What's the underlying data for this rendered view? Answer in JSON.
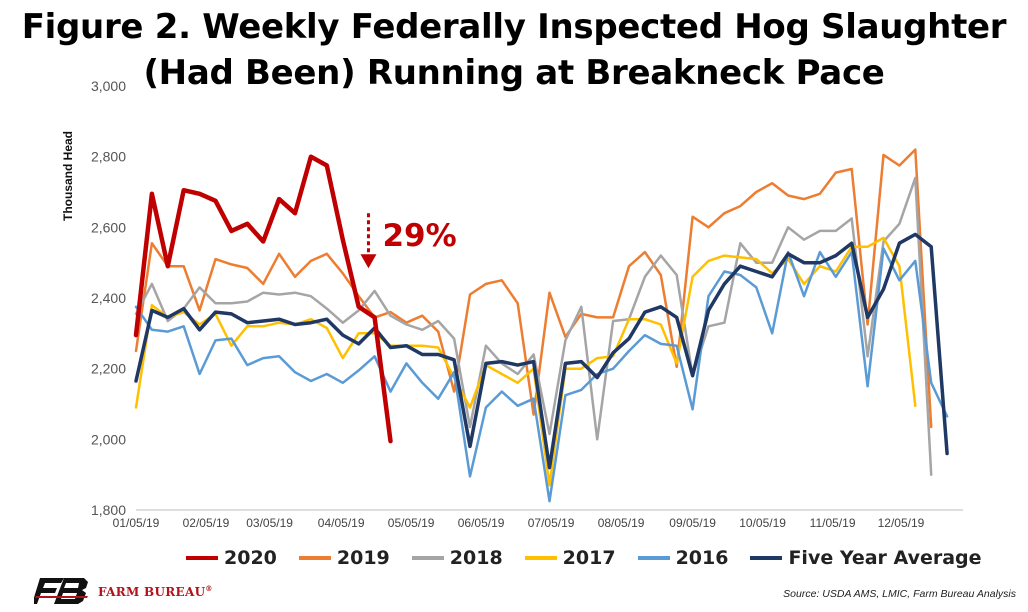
{
  "title_lines": [
    "Figure 2. Weekly Federally Inspected Hog Slaughter",
    "(Had Been) Running at Breakneck Pace"
  ],
  "source": "Source: USDA AMS, LMIC, Farm Bureau Analysis",
  "logo": {
    "text": "FARM BUREAU",
    "mark": "®",
    "icon": "farm-bureau-fb-logo",
    "color": "#b3121b"
  },
  "chart_data": {
    "type": "line",
    "title": "Figure 2. Weekly Federally Inspected Hog Slaughter (Had Been) Running at Breakneck Pace",
    "ylabel": "Thousand Head",
    "xlabel": "",
    "ylim": [
      1800,
      3000
    ],
    "yticks": [
      1800,
      2000,
      2200,
      2400,
      2600,
      2800,
      3000
    ],
    "ytick_labels": [
      "1,800",
      "2,000",
      "2,200",
      "2,400",
      "2,600",
      "2,800",
      "3,000"
    ],
    "xtick_labels": [
      "01/05/19",
      "02/05/19",
      "03/05/19",
      "04/05/19",
      "05/05/19",
      "06/05/19",
      "07/05/19",
      "08/05/19",
      "09/05/19",
      "10/05/19",
      "11/05/19",
      "12/05/19"
    ],
    "xtick_weeks": [
      0,
      4.4,
      8.4,
      12.9,
      17.3,
      21.7,
      26.1,
      30.5,
      35.0,
      39.4,
      43.8,
      48.1
    ],
    "weeks": 53,
    "grid": false,
    "legend_position": "bottom",
    "annotation": {
      "text": "29%",
      "week": 16,
      "y_from": 2640,
      "y_to": 2490,
      "color": "#c00000"
    },
    "series": [
      {
        "name": "2020",
        "color": "#c00000",
        "width": 4.5,
        "values": [
          2295,
          2695,
          2490,
          2705,
          2695,
          2675,
          2590,
          2610,
          2560,
          2680,
          2640,
          2800,
          2775,
          2565,
          2375,
          2345,
          1995
        ]
      },
      {
        "name": "2019",
        "color": "#ed7d31",
        "width": 2.5,
        "values": [
          2250,
          2555,
          2490,
          2490,
          2365,
          2510,
          2495,
          2485,
          2440,
          2525,
          2460,
          2505,
          2525,
          2470,
          2405,
          2345,
          2360,
          2330,
          2350,
          2305,
          2135,
          2410,
          2440,
          2450,
          2385,
          2070,
          2415,
          2290,
          2355,
          2345,
          2345,
          2490,
          2530,
          2465,
          2205,
          2630,
          2600,
          2640,
          2660,
          2700,
          2725,
          2690,
          2680,
          2695,
          2755,
          2765,
          2325,
          2805,
          2775,
          2820,
          2035
        ]
      },
      {
        "name": "2018",
        "color": "#a5a5a5",
        "width": 2.5,
        "values": [
          2355,
          2440,
          2335,
          2370,
          2430,
          2385,
          2385,
          2390,
          2415,
          2410,
          2415,
          2405,
          2370,
          2330,
          2365,
          2420,
          2350,
          2325,
          2310,
          2335,
          2285,
          2035,
          2265,
          2215,
          2185,
          2240,
          2015,
          2280,
          2375,
          2000,
          2335,
          2340,
          2460,
          2520,
          2465,
          2180,
          2320,
          2330,
          2555,
          2500,
          2500,
          2600,
          2565,
          2590,
          2590,
          2625,
          2235,
          2560,
          2610,
          2740,
          1900
        ]
      },
      {
        "name": "2017",
        "color": "#ffc000",
        "width": 2.5,
        "values": [
          2090,
          2380,
          2345,
          2360,
          2325,
          2355,
          2265,
          2320,
          2320,
          2330,
          2325,
          2340,
          2315,
          2230,
          2300,
          2300,
          2265,
          2265,
          2265,
          2260,
          2175,
          2090,
          2210,
          2185,
          2160,
          2200,
          1870,
          2200,
          2200,
          2230,
          2235,
          2340,
          2340,
          2325,
          2215,
          2460,
          2505,
          2520,
          2515,
          2510,
          2470,
          2510,
          2440,
          2490,
          2475,
          2545,
          2545,
          2570,
          2490,
          2095
        ]
      },
      {
        "name": "2016",
        "color": "#5b9bd5",
        "width": 2.5,
        "values": [
          2375,
          2310,
          2305,
          2320,
          2185,
          2280,
          2285,
          2210,
          2230,
          2235,
          2190,
          2165,
          2185,
          2160,
          2195,
          2235,
          2135,
          2215,
          2160,
          2115,
          2190,
          1895,
          2090,
          2135,
          2095,
          2115,
          1825,
          2125,
          2140,
          2185,
          2200,
          2250,
          2295,
          2270,
          2265,
          2085,
          2405,
          2475,
          2465,
          2430,
          2300,
          2530,
          2405,
          2530,
          2460,
          2530,
          2150,
          2540,
          2450,
          2505,
          2160,
          2065
        ]
      },
      {
        "name": "Five Year Average",
        "color": "#1f3864",
        "width": 3.5,
        "values": [
          2165,
          2365,
          2345,
          2370,
          2310,
          2360,
          2355,
          2330,
          2335,
          2340,
          2325,
          2330,
          2340,
          2295,
          2270,
          2315,
          2260,
          2265,
          2240,
          2240,
          2225,
          1980,
          2215,
          2220,
          2210,
          2220,
          1920,
          2215,
          2220,
          2175,
          2245,
          2285,
          2360,
          2375,
          2345,
          2180,
          2365,
          2440,
          2490,
          2475,
          2460,
          2525,
          2500,
          2500,
          2520,
          2555,
          2345,
          2425,
          2555,
          2580,
          2545,
          1960
        ]
      }
    ]
  }
}
